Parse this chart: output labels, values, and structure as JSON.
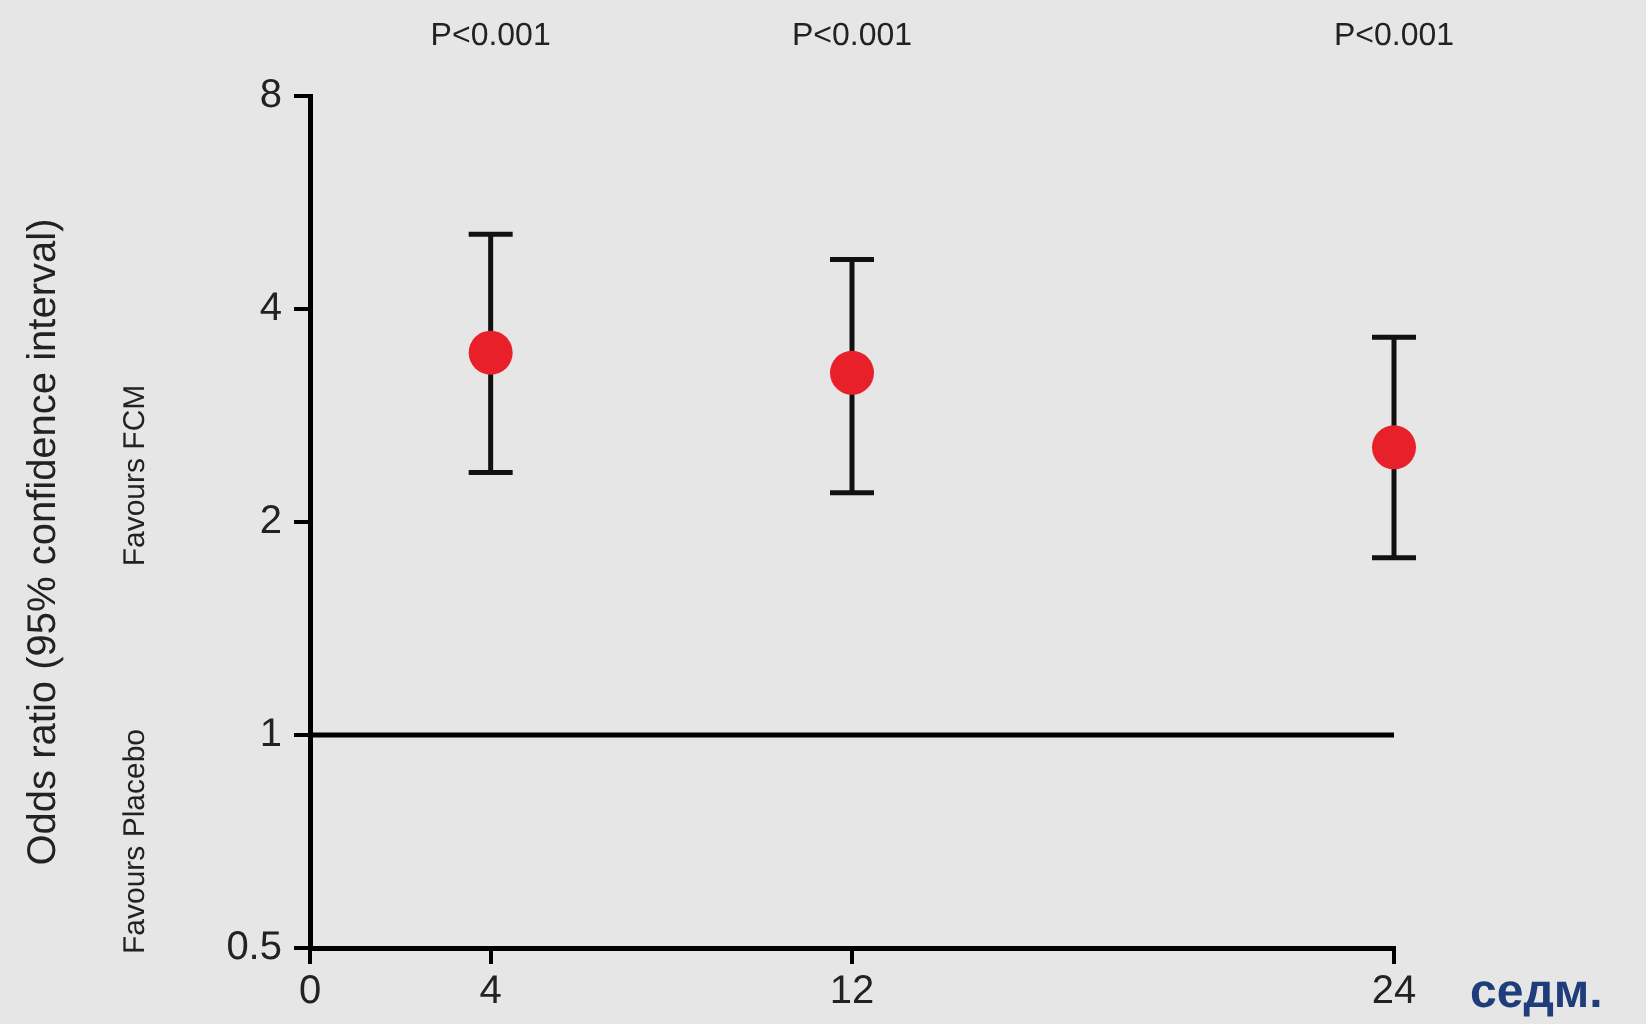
{
  "chart_data": {
    "type": "scatter",
    "ylabel": "Odds ratio (95% confidence interval)",
    "xlabel": "седм.",
    "x": [
      4,
      12,
      24
    ],
    "values": [
      3.47,
      3.25,
      2.55
    ],
    "errors": [
      [
        2.35,
        5.1
      ],
      [
        2.2,
        4.7
      ],
      [
        1.78,
        3.65
      ]
    ],
    "color": "#e8202a",
    "marker": "circle",
    "log": "y",
    "xlim": [
      0,
      24
    ],
    "xticks": [
      0,
      4,
      12,
      24
    ],
    "ylim": [
      0.5,
      8
    ],
    "yticks": [
      0.5,
      1,
      2,
      4,
      8
    ],
    "ref_lines": [
      {
        "axis": "y",
        "value": 1,
        "color": "#000000"
      }
    ],
    "annotations": [
      "P<0.001",
      "P<0.001",
      "P<0.001",
      "Favours FCM",
      "Favours Placebo"
    ]
  }
}
